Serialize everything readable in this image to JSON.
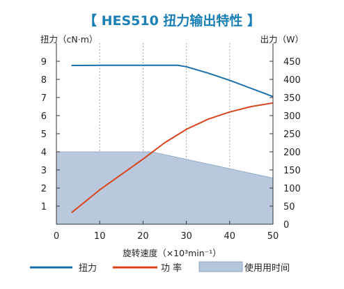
{
  "chart_data": {
    "type": "line",
    "title": "【 HES510 扭力输出特性 】",
    "xlabel": "旋转速度（×10³min⁻¹）",
    "ylabel_left": "扭力（cN·m）",
    "ylabel_right": "出力（W）",
    "xlim": [
      0,
      50
    ],
    "ylim_left": [
      0,
      10
    ],
    "ylim_right": [
      0,
      500
    ],
    "x_ticks": [
      0,
      10,
      20,
      30,
      40,
      50
    ],
    "y_left_ticks": [
      1,
      2,
      3,
      4,
      5,
      6,
      7,
      8,
      9
    ],
    "y_right_ticks": [
      0,
      50,
      100,
      150,
      200,
      250,
      300,
      350,
      400,
      450
    ],
    "grid": "vertical-dotted",
    "legend_position": "bottom",
    "colors": {
      "torque": "#1a6fa8",
      "power": "#d9441f",
      "usage": "#b5c5da",
      "title": "#1a7fb5"
    },
    "series": [
      {
        "name": "扭力",
        "axis": "left",
        "x": [
          3.5,
          10,
          20,
          28,
          30,
          35,
          40,
          45,
          50
        ],
        "y": [
          8.77,
          8.78,
          8.78,
          8.78,
          8.7,
          8.35,
          7.95,
          7.5,
          7.05
        ]
      },
      {
        "name": "功 率",
        "axis": "right",
        "x": [
          3.5,
          10,
          20,
          25,
          30,
          35,
          40,
          45,
          50
        ],
        "y": [
          32,
          95,
          180,
          225,
          262,
          290,
          310,
          325,
          335
        ]
      },
      {
        "name": "使用用时间",
        "axis": "left",
        "fill": "area",
        "x": [
          0,
          22,
          50
        ],
        "y": [
          4.0,
          4.0,
          2.55
        ]
      }
    ]
  }
}
